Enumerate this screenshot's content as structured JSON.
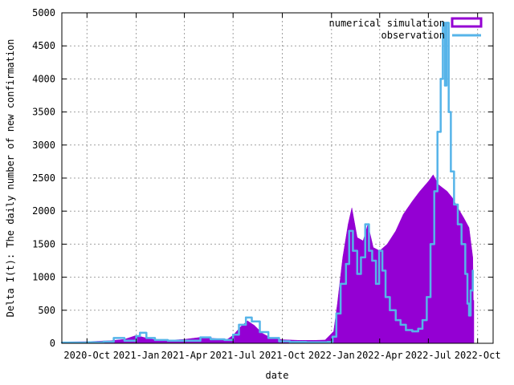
{
  "chart_data": {
    "type": "area",
    "title": "",
    "xlabel": "date",
    "ylabel": "Delta I(t): The daily number of new confirmation",
    "x_range": [
      "2020-08-15",
      "2022-10-30"
    ],
    "ylim": [
      0,
      5000
    ],
    "y_ticks": [
      0,
      500,
      1000,
      1500,
      2000,
      2500,
      3000,
      3500,
      4000,
      4500,
      5000
    ],
    "x_ticks": [
      {
        "date": "2020-10-01",
        "label": "2020-Oct"
      },
      {
        "date": "2021-01-01",
        "label": "2021-Jan"
      },
      {
        "date": "2021-04-01",
        "label": "2021-Apr"
      },
      {
        "date": "2021-07-01",
        "label": "2021-Jul"
      },
      {
        "date": "2021-10-01",
        "label": "2021-Oct"
      },
      {
        "date": "2022-01-01",
        "label": "2022-Jan"
      },
      {
        "date": "2022-04-01",
        "label": "2022-Apr"
      },
      {
        "date": "2022-07-01",
        "label": "2022-Jul"
      },
      {
        "date": "2022-10-01",
        "label": "2022-Oct"
      }
    ],
    "grid": true,
    "legend_position": "top-right",
    "series": [
      {
        "name": "numerical simulation",
        "style": "filled-bars",
        "color": "#9400d3",
        "points": [
          [
            "2020-08-15",
            20
          ],
          [
            "2020-10-01",
            25
          ],
          [
            "2020-11-15",
            40
          ],
          [
            "2020-12-10",
            60
          ],
          [
            "2021-01-01",
            120
          ],
          [
            "2021-01-15",
            90
          ],
          [
            "2021-02-01",
            60
          ],
          [
            "2021-03-01",
            45
          ],
          [
            "2021-04-01",
            60
          ],
          [
            "2021-05-01",
            90
          ],
          [
            "2021-06-01",
            70
          ],
          [
            "2021-06-20",
            60
          ],
          [
            "2021-07-01",
            120
          ],
          [
            "2021-07-15",
            250
          ],
          [
            "2021-07-28",
            340
          ],
          [
            "2021-08-10",
            270
          ],
          [
            "2021-08-25",
            150
          ],
          [
            "2021-09-10",
            80
          ],
          [
            "2021-10-01",
            55
          ],
          [
            "2021-11-01",
            45
          ],
          [
            "2021-12-01",
            45
          ],
          [
            "2021-12-20",
            50
          ],
          [
            "2022-01-05",
            180
          ],
          [
            "2022-01-12",
            600
          ],
          [
            "2022-01-22",
            1300
          ],
          [
            "2022-02-01",
            1800
          ],
          [
            "2022-02-08",
            2050
          ],
          [
            "2022-02-18",
            1600
          ],
          [
            "2022-03-01",
            1550
          ],
          [
            "2022-03-10",
            1800
          ],
          [
            "2022-03-20",
            1450
          ],
          [
            "2022-04-01",
            1400
          ],
          [
            "2022-04-15",
            1500
          ],
          [
            "2022-05-01",
            1700
          ],
          [
            "2022-05-15",
            1950
          ],
          [
            "2022-06-01",
            2150
          ],
          [
            "2022-06-15",
            2300
          ],
          [
            "2022-07-01",
            2450
          ],
          [
            "2022-07-10",
            2550
          ],
          [
            "2022-07-20",
            2400
          ],
          [
            "2022-07-28",
            2350
          ],
          [
            "2022-08-05",
            2300
          ],
          [
            "2022-08-15",
            2200
          ],
          [
            "2022-08-25",
            2050
          ],
          [
            "2022-09-05",
            1900
          ],
          [
            "2022-09-15",
            1750
          ],
          [
            "2022-09-22",
            1300
          ],
          [
            "2022-09-24",
            0
          ]
        ]
      },
      {
        "name": "observation",
        "style": "line",
        "color": "#56b4e9",
        "points": [
          [
            "2020-08-15",
            10
          ],
          [
            "2020-10-01",
            15
          ],
          [
            "2020-11-01",
            25
          ],
          [
            "2020-11-20",
            80
          ],
          [
            "2020-12-10",
            40
          ],
          [
            "2021-01-01",
            110
          ],
          [
            "2021-01-08",
            160
          ],
          [
            "2021-01-20",
            80
          ],
          [
            "2021-02-05",
            50
          ],
          [
            "2021-03-01",
            40
          ],
          [
            "2021-04-01",
            40
          ],
          [
            "2021-05-01",
            90
          ],
          [
            "2021-05-20",
            60
          ],
          [
            "2021-06-15",
            50
          ],
          [
            "2021-07-01",
            130
          ],
          [
            "2021-07-12",
            280
          ],
          [
            "2021-07-25",
            390
          ],
          [
            "2021-08-05",
            330
          ],
          [
            "2021-08-20",
            170
          ],
          [
            "2021-09-05",
            80
          ],
          [
            "2021-09-25",
            30
          ],
          [
            "2021-10-15",
            20
          ],
          [
            "2021-11-15",
            15
          ],
          [
            "2021-12-25",
            20
          ],
          [
            "2022-01-03",
            100
          ],
          [
            "2022-01-10",
            450
          ],
          [
            "2022-01-18",
            900
          ],
          [
            "2022-01-28",
            1200
          ],
          [
            "2022-02-03",
            1700
          ],
          [
            "2022-02-10",
            1400
          ],
          [
            "2022-02-18",
            1050
          ],
          [
            "2022-02-25",
            1300
          ],
          [
            "2022-03-05",
            1800
          ],
          [
            "2022-03-12",
            1400
          ],
          [
            "2022-03-18",
            1250
          ],
          [
            "2022-03-25",
            900
          ],
          [
            "2022-03-31",
            1400
          ],
          [
            "2022-04-06",
            1100
          ],
          [
            "2022-04-12",
            700
          ],
          [
            "2022-04-20",
            500
          ],
          [
            "2022-05-01",
            350
          ],
          [
            "2022-05-10",
            280
          ],
          [
            "2022-05-20",
            200
          ],
          [
            "2022-06-01",
            180
          ],
          [
            "2022-06-12",
            220
          ],
          [
            "2022-06-20",
            350
          ],
          [
            "2022-06-28",
            700
          ],
          [
            "2022-07-05",
            1500
          ],
          [
            "2022-07-12",
            2300
          ],
          [
            "2022-07-18",
            3200
          ],
          [
            "2022-07-24",
            4000
          ],
          [
            "2022-07-28",
            4850
          ],
          [
            "2022-08-01",
            3900
          ],
          [
            "2022-08-04",
            4850
          ],
          [
            "2022-08-08",
            3500
          ],
          [
            "2022-08-12",
            2600
          ],
          [
            "2022-08-18",
            2100
          ],
          [
            "2022-08-25",
            1800
          ],
          [
            "2022-09-01",
            1500
          ],
          [
            "2022-09-08",
            1050
          ],
          [
            "2022-09-12",
            600
          ],
          [
            "2022-09-15",
            420
          ],
          [
            "2022-09-18",
            800
          ],
          [
            "2022-09-22",
            1100
          ]
        ]
      }
    ]
  }
}
